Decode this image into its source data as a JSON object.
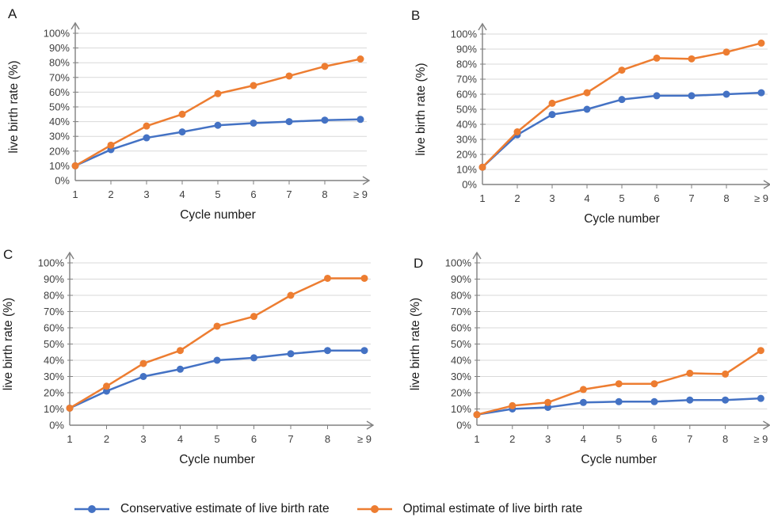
{
  "colors": {
    "conservative": "#4472C4",
    "optimal": "#ED7D31",
    "gridline": "#D9D9D9",
    "axis": "#808080",
    "tick_label": "#3F3F3F",
    "title": "#1A1A1A"
  },
  "legend": {
    "items": [
      {
        "id": "conservative",
        "label": "Conservative estimate of live birth rate",
        "color": "#4472C4"
      },
      {
        "id": "optimal",
        "label": "Optimal estimate of live birth rate",
        "color": "#ED7D31"
      }
    ]
  },
  "chart_data": [
    {
      "type": "line",
      "panel_label": "A",
      "xlabel": "Cycle number",
      "ylabel": "live birth rate (%)",
      "categories": [
        "1",
        "2",
        "3",
        "4",
        "5",
        "6",
        "7",
        "8",
        "≥ 9"
      ],
      "ylim": [
        0,
        100
      ],
      "y_tick_step": 10,
      "y_tick_labels": [
        "0%",
        "10%",
        "20%",
        "30%",
        "40%",
        "50%",
        "60%",
        "70%",
        "80%",
        "90%",
        "100%"
      ],
      "grid": true,
      "legend_position": "shared-bottom",
      "series": [
        {
          "name": "Conservative estimate of live birth rate",
          "color": "#4472C4",
          "values": [
            10,
            21,
            29,
            33,
            37.5,
            39,
            40,
            41,
            41.5
          ]
        },
        {
          "name": "Optimal estimate of live birth rate",
          "color": "#ED7D31",
          "values": [
            10,
            24,
            37,
            45,
            59,
            64.5,
            71,
            77.5,
            82.5
          ]
        }
      ]
    },
    {
      "type": "line",
      "panel_label": "B",
      "xlabel": "Cycle number",
      "ylabel": "live birth rate (%)",
      "categories": [
        "1",
        "2",
        "3",
        "4",
        "5",
        "6",
        "7",
        "8",
        "≥ 9"
      ],
      "ylim": [
        0,
        100
      ],
      "y_tick_step": 10,
      "y_tick_labels": [
        "0%",
        "10%",
        "20%",
        "30%",
        "40%",
        "50%",
        "60%",
        "70%",
        "80%",
        "90%",
        "100%"
      ],
      "grid": true,
      "legend_position": "shared-bottom",
      "series": [
        {
          "name": "Conservative estimate of live birth rate",
          "color": "#4472C4",
          "values": [
            11.5,
            33,
            46.5,
            50,
            56.5,
            59,
            59,
            60,
            61
          ]
        },
        {
          "name": "Optimal estimate of live birth rate",
          "color": "#ED7D31",
          "values": [
            11.5,
            35,
            54,
            61,
            76,
            84,
            83.5,
            88,
            94
          ]
        }
      ]
    },
    {
      "type": "line",
      "panel_label": "C",
      "xlabel": "Cycle number",
      "ylabel": "live birth rate (%)",
      "categories": [
        "1",
        "2",
        "3",
        "4",
        "5",
        "6",
        "7",
        "8",
        "≥ 9"
      ],
      "ylim": [
        0,
        100
      ],
      "y_tick_step": 10,
      "y_tick_labels": [
        "0%",
        "10%",
        "20%",
        "30%",
        "40%",
        "50%",
        "60%",
        "70%",
        "80%",
        "90%",
        "100%"
      ],
      "grid": true,
      "legend_position": "shared-bottom",
      "series": [
        {
          "name": "Conservative estimate of live birth rate",
          "color": "#4472C4",
          "values": [
            10.5,
            21,
            30,
            34.5,
            40,
            41.5,
            44,
            46,
            46
          ]
        },
        {
          "name": "Optimal estimate of live birth rate",
          "color": "#ED7D31",
          "values": [
            10.5,
            24,
            38,
            46,
            61,
            67,
            80,
            90.5,
            90.5
          ]
        }
      ]
    },
    {
      "type": "line",
      "panel_label": "D",
      "xlabel": "Cycle number",
      "ylabel": "live birth rate (%)",
      "categories": [
        "1",
        "2",
        "3",
        "4",
        "5",
        "6",
        "7",
        "8",
        "≥ 9"
      ],
      "ylim": [
        0,
        100
      ],
      "y_tick_step": 10,
      "y_tick_labels": [
        "0%",
        "10%",
        "20%",
        "30%",
        "40%",
        "50%",
        "60%",
        "70%",
        "80%",
        "90%",
        "100%"
      ],
      "grid": true,
      "legend_position": "shared-bottom",
      "series": [
        {
          "name": "Conservative estimate of live birth rate",
          "color": "#4472C4",
          "values": [
            6.5,
            10,
            11,
            14,
            14.5,
            14.5,
            15.5,
            15.5,
            16.5
          ]
        },
        {
          "name": "Optimal estimate of live birth rate",
          "color": "#ED7D31",
          "values": [
            6.5,
            12,
            14,
            22,
            25.5,
            25.5,
            32,
            31.5,
            46
          ]
        }
      ]
    }
  ]
}
